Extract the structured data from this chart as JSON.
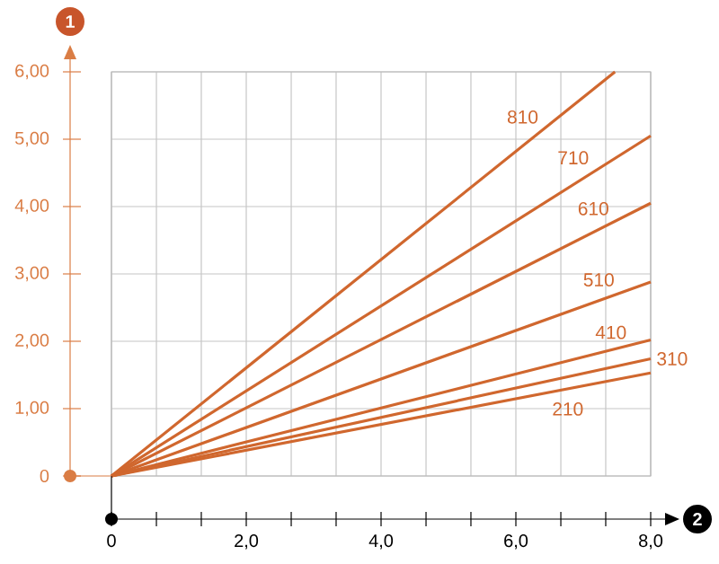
{
  "chart_data": {
    "type": "line",
    "xlabel": "2",
    "ylabel": "1",
    "xlim": [
      0,
      8
    ],
    "ylim": [
      0,
      6
    ],
    "xticks": [
      0,
      {
        "value": 0.667,
        "label": null
      },
      {
        "value": 1.333,
        "label": null
      },
      {
        "value": 2,
        "label": "2,0"
      },
      {
        "value": 2.667,
        "label": null
      },
      {
        "value": 3.333,
        "label": null
      },
      {
        "value": 4,
        "label": "4,0"
      },
      {
        "value": 4.667,
        "label": null
      },
      {
        "value": 5.333,
        "label": null
      },
      {
        "value": 6,
        "label": "6,0"
      },
      {
        "value": 6.667,
        "label": null
      },
      {
        "value": 7.333,
        "label": null
      },
      {
        "value": 8,
        "label": "8,0"
      }
    ],
    "yticks": [
      0,
      {
        "value": 1,
        "label": "1,00"
      },
      {
        "value": 2,
        "label": "2,00"
      },
      {
        "value": 3,
        "label": "3,00"
      },
      {
        "value": 4,
        "label": "4,00"
      },
      {
        "value": 5,
        "label": "5,00"
      },
      {
        "value": 6,
        "label": "6,00"
      }
    ],
    "grid": true,
    "series": [
      {
        "name": "810",
        "color": "#d0672e",
        "x": [
          0,
          7.47
        ],
        "values": [
          0,
          6.0
        ]
      },
      {
        "name": "710",
        "color": "#d0672e",
        "x": [
          0,
          8
        ],
        "values": [
          0,
          5.05
        ]
      },
      {
        "name": "610",
        "color": "#d0672e",
        "x": [
          0,
          8
        ],
        "values": [
          0,
          4.05
        ]
      },
      {
        "name": "510",
        "color": "#d0672e",
        "x": [
          0,
          8
        ],
        "values": [
          0,
          2.88
        ]
      },
      {
        "name": "410",
        "color": "#d0672e",
        "x": [
          0,
          8
        ],
        "values": [
          0,
          2.02
        ]
      },
      {
        "name": "310",
        "color": "#d0672e",
        "x": [
          0,
          8
        ],
        "values": [
          0,
          1.74
        ]
      },
      {
        "name": "210",
        "color": "#d0672e",
        "x": [
          0,
          8
        ],
        "values": [
          0,
          1.53
        ]
      }
    ]
  }
}
